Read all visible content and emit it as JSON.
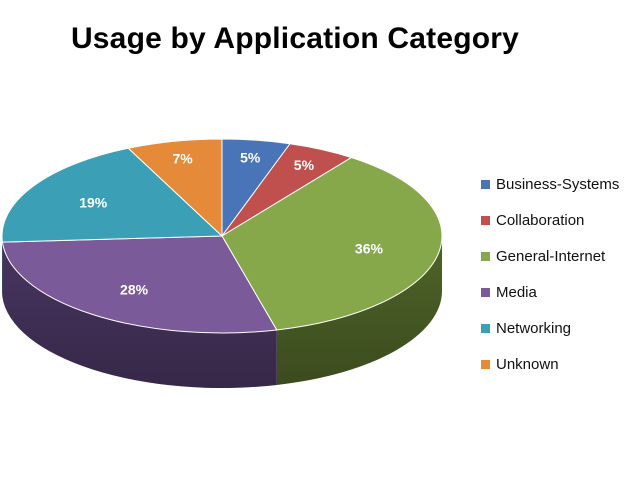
{
  "chart_data": {
    "type": "pie",
    "title": "Usage by Application Category",
    "three_d": true,
    "legend_position": "right",
    "slices": [
      {
        "name": "Business-Systems",
        "value": 5,
        "label": "5%",
        "color": "#4a74b8",
        "side_color": "#2e4a75"
      },
      {
        "name": "Collaboration",
        "value": 5,
        "label": "5%",
        "color": "#c0504d",
        "side_color": "#7a302e"
      },
      {
        "name": "General-Internet",
        "value": 36,
        "label": "36%",
        "color": "#86a84a",
        "side_color": "#4f6428"
      },
      {
        "name": "Media",
        "value": 28,
        "label": "28%",
        "color": "#7a5a98",
        "side_color": "#483560"
      },
      {
        "name": "Networking",
        "value": 19,
        "label": "19%",
        "color": "#3b9fb6",
        "side_color": "#22606f"
      },
      {
        "name": "Unknown",
        "value": 7,
        "label": "7%",
        "color": "#e58a38",
        "side_color": "#96561e"
      }
    ]
  }
}
